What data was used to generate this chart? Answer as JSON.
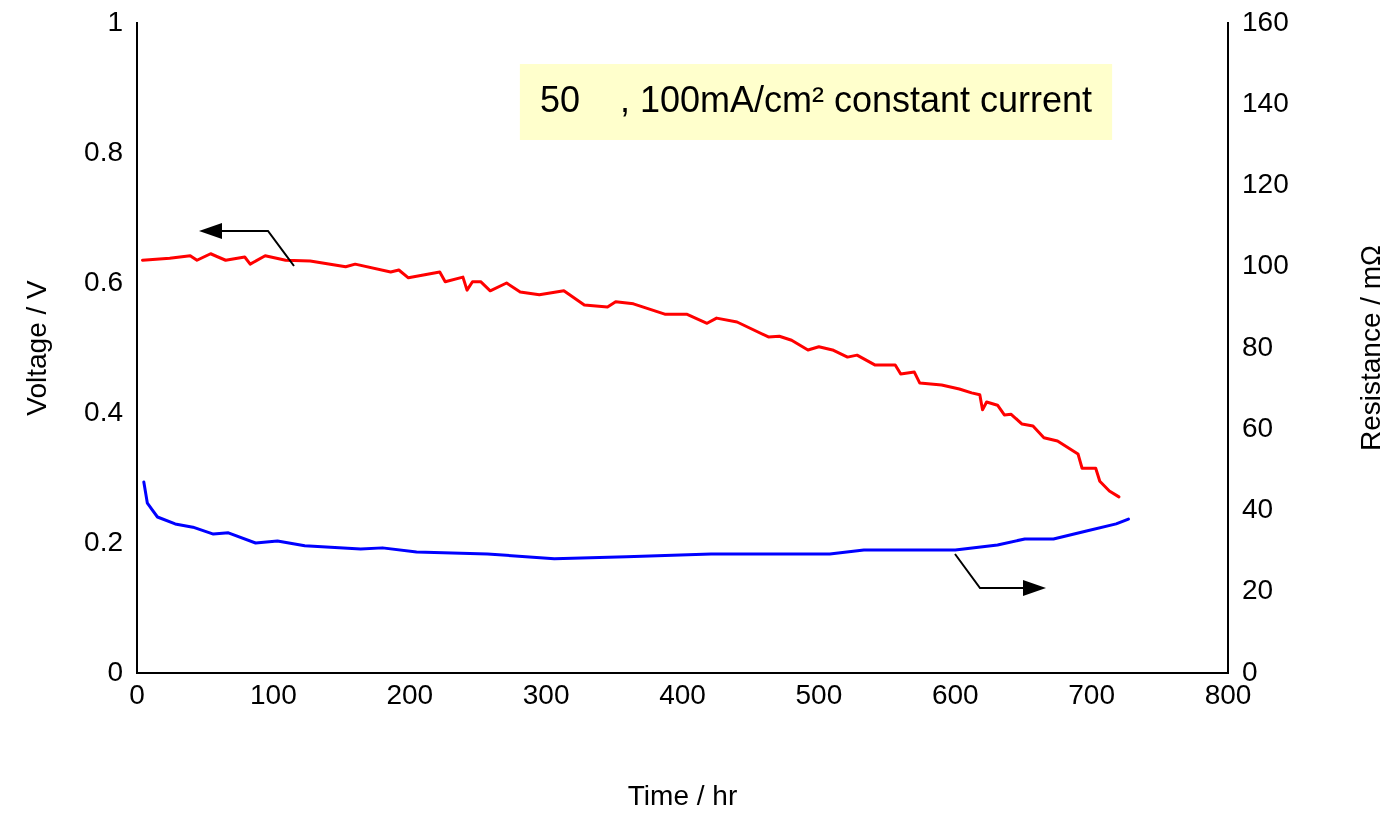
{
  "chart_data": {
    "type": "line",
    "xlabel": "Time / hr",
    "ylabel": "Voltage / V",
    "y2label": "Resistance / mΩ",
    "annotations": [
      "50    , 100mA/cm² constant current"
    ],
    "xlim": [
      0,
      800
    ],
    "xticks": [
      0,
      100,
      200,
      300,
      400,
      500,
      600,
      700,
      800
    ],
    "ylim": [
      0,
      1
    ],
    "yticks": [
      0,
      0.2,
      0.4,
      0.6,
      0.8,
      1
    ],
    "y2lim": [
      0,
      160
    ],
    "y2ticks": [
      0,
      20,
      40,
      60,
      80,
      100,
      120,
      140,
      160
    ],
    "grid": false,
    "legend": false,
    "marker": "none",
    "line_style": "solid",
    "series": [
      {
        "color": "#ff0000",
        "x": [
          4,
          24,
          39,
          44,
          54,
          65,
          79,
          83,
          94,
          109,
          127,
          153,
          160,
          186,
          192,
          199,
          222,
          226,
          239,
          242,
          246,
          252,
          259,
          271,
          281,
          295,
          313,
          328,
          345,
          351,
          364,
          387,
          403,
          418,
          425,
          440,
          463,
          471,
          480,
          492,
          500,
          510,
          521,
          528,
          541,
          556,
          560,
          570,
          574,
          590,
          603,
          612,
          618,
          620,
          623,
          631,
          636,
          641,
          649,
          657,
          665,
          675,
          690,
          693,
          703,
          706,
          713,
          720
        ],
        "values": [
          0.635,
          0.638,
          0.642,
          0.635,
          0.645,
          0.635,
          0.64,
          0.629,
          0.642,
          0.635,
          0.634,
          0.625,
          0.629,
          0.617,
          0.62,
          0.608,
          0.617,
          0.602,
          0.609,
          0.589,
          0.602,
          0.602,
          0.588,
          0.6,
          0.586,
          0.582,
          0.588,
          0.566,
          0.563,
          0.571,
          0.568,
          0.552,
          0.552,
          0.538,
          0.546,
          0.54,
          0.517,
          0.518,
          0.512,
          0.497,
          0.502,
          0.497,
          0.486,
          0.489,
          0.474,
          0.474,
          0.46,
          0.463,
          0.446,
          0.443,
          0.437,
          0.431,
          0.428,
          0.405,
          0.417,
          0.412,
          0.397,
          0.398,
          0.383,
          0.38,
          0.362,
          0.357,
          0.337,
          0.315,
          0.315,
          0.295,
          0.28,
          0.271
        ]
      },
      {
        "color": "#0000ff",
        "axis": "y2",
        "x": [
          5,
          7.6,
          15,
          28,
          41,
          56,
          67,
          87,
          103,
          123,
          164,
          180,
          205,
          257,
          306,
          359,
          421,
          508,
          533,
          600,
          631,
          651,
          672,
          697,
          718,
          727
        ],
        "values": [
          47,
          41.8,
          38.4,
          36.7,
          35.9,
          34.2,
          34.5,
          32,
          32.5,
          31.3,
          30.5,
          30.8,
          29.8,
          29.3,
          28.1,
          28.6,
          29.3,
          29.3,
          30.3,
          30.3,
          31.5,
          33,
          33,
          35,
          36.7,
          37.9
        ]
      }
    ]
  }
}
